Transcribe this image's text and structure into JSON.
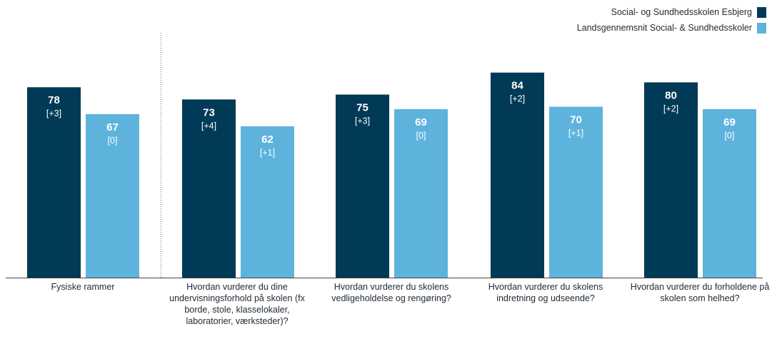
{
  "colors": {
    "dark": "#003a56",
    "light": "#5db3dc"
  },
  "legend": [
    {
      "label": "Social- og Sundhedsskolen Esbjerg",
      "color": "#003a56"
    },
    {
      "label": "Landsgennemsnit Social- & Sundhedsskoler",
      "color": "#5db3dc"
    }
  ],
  "chart_data": {
    "type": "bar",
    "title": "",
    "xlabel": "",
    "ylabel": "",
    "ylim": [
      0,
      100
    ],
    "grid": false,
    "legend_position": "top-right",
    "categories": [
      "Fysiske rammer",
      "Hvordan vurderer du dine undervisningsforhold på skolen (fx borde, stole, klasselokaler, laboratorier, værksteder)?",
      "Hvordan vurderer du skolens vedligeholdelse og rengøring?",
      "Hvordan vurderer du skolens indretning og udseende?",
      "Hvordan vurderer du forholdene på skolen som helhed?"
    ],
    "series": [
      {
        "name": "Social- og Sundhedsskolen Esbjerg",
        "color": "#003a56",
        "values": [
          78,
          73,
          75,
          84,
          80
        ],
        "changes": [
          "[+3]",
          "[+4]",
          "[+3]",
          "[+2]",
          "[+2]"
        ]
      },
      {
        "name": "Landsgennemsnit Social- & Sundhedsskoler",
        "color": "#5db3dc",
        "values": [
          67,
          62,
          69,
          70,
          69
        ],
        "changes": [
          "[0]",
          "[+1]",
          "[0]",
          "[+1]",
          "[0]"
        ]
      }
    ]
  }
}
